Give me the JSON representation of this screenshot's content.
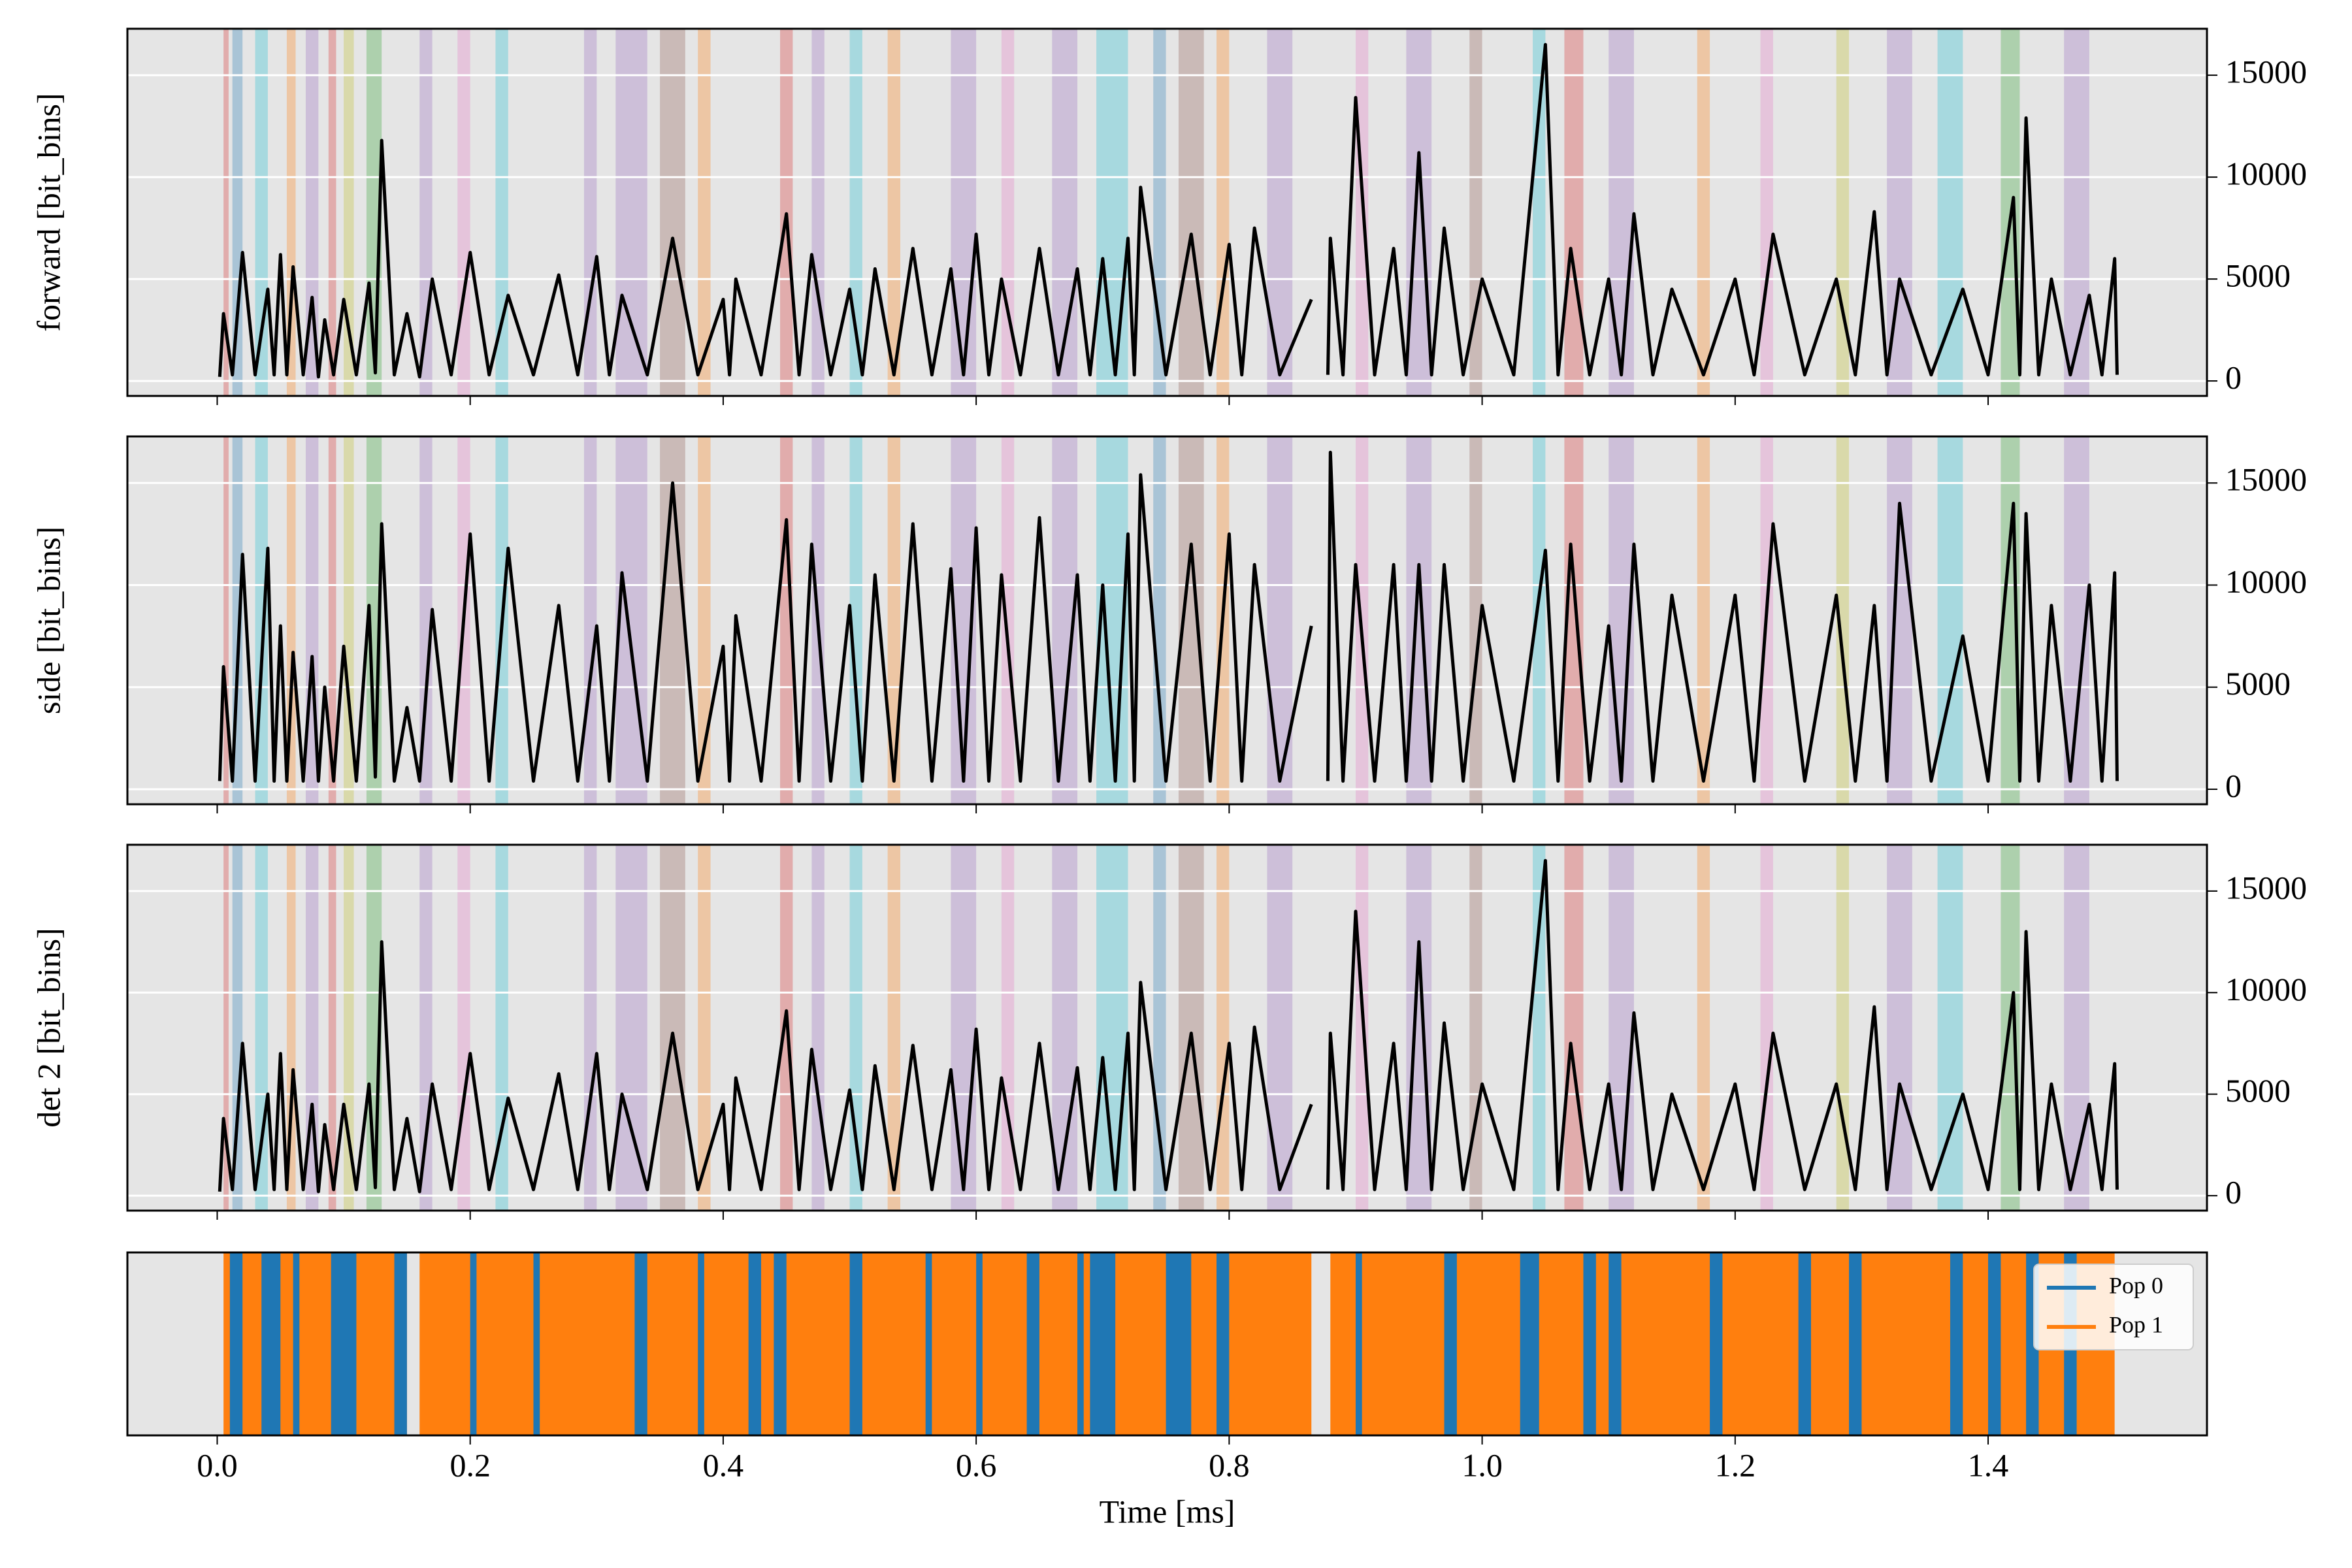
{
  "chart_data": [
    {
      "type": "line",
      "ylabel": "forward [bit_bins]",
      "color": "#000000",
      "grid": true,
      "xlim": [
        -0.071,
        1.573
      ],
      "ylim": [
        -735,
        17280
      ],
      "yticks": [
        0,
        5000,
        10000,
        15000
      ],
      "bands": {
        "x": [
          0.005,
          0.012,
          0.03,
          0.055,
          0.07,
          0.088,
          0.1,
          0.118,
          0.16,
          0.19,
          0.22,
          0.29,
          0.315,
          0.35,
          0.38,
          0.445,
          0.47,
          0.5,
          0.53,
          0.58,
          0.62,
          0.66,
          0.695,
          0.74,
          0.76,
          0.79,
          0.83,
          0.9,
          0.94,
          0.99,
          1.04,
          1.065,
          1.1,
          1.17,
          1.22,
          1.28,
          1.32,
          1.36,
          1.41,
          1.46
        ],
        "x_end": [
          0.009,
          0.02,
          0.04,
          0.062,
          0.08,
          0.094,
          0.108,
          0.13,
          0.17,
          0.2,
          0.23,
          0.3,
          0.34,
          0.37,
          0.39,
          0.455,
          0.48,
          0.51,
          0.54,
          0.6,
          0.63,
          0.68,
          0.72,
          0.75,
          0.78,
          0.8,
          0.85,
          0.91,
          0.96,
          1.0,
          1.05,
          1.08,
          1.12,
          1.18,
          1.23,
          1.29,
          1.34,
          1.38,
          1.425,
          1.48
        ],
        "color": [
          "#d62728",
          "#1f77b4",
          "#17becf",
          "#ff7f0e",
          "#9467bd",
          "#d62728",
          "#bcbd22",
          "#2ca02c",
          "#9467bd",
          "#e377c2",
          "#17becf",
          "#9467bd",
          "#9467bd",
          "#8c564b",
          "#ff7f0e",
          "#d62728",
          "#9467bd",
          "#17becf",
          "#ff7f0e",
          "#9467bd",
          "#e377c2",
          "#9467bd",
          "#17becf",
          "#1f77b4",
          "#8c564b",
          "#ff7f0e",
          "#9467bd",
          "#e377c2",
          "#9467bd",
          "#8c564b",
          "#17becf",
          "#d62728",
          "#9467bd",
          "#ff7f0e",
          "#e377c2",
          "#bcbd22",
          "#9467bd",
          "#17becf",
          "#2ca02c",
          "#9467bd"
        ]
      },
      "x": [
        0.002,
        0.005,
        0.012,
        0.02,
        0.03,
        0.04,
        0.045,
        0.05,
        0.055,
        0.06,
        0.068,
        0.075,
        0.08,
        0.085,
        0.092,
        0.1,
        0.11,
        0.12,
        0.125,
        0.13,
        0.14,
        0.15,
        0.16,
        0.17,
        0.185,
        0.2,
        0.215,
        0.23,
        0.25,
        0.27,
        0.285,
        0.3,
        0.31,
        0.32,
        0.34,
        0.36,
        0.38,
        0.4,
        0.405,
        0.41,
        0.43,
        0.45,
        0.46,
        0.47,
        0.485,
        0.5,
        0.51,
        0.52,
        0.535,
        0.55,
        0.565,
        0.58,
        0.59,
        0.6,
        0.61,
        0.62,
        0.635,
        0.65,
        0.665,
        0.68,
        0.69,
        0.7,
        0.71,
        0.72,
        0.725,
        0.73,
        0.75,
        0.77,
        0.785,
        0.8,
        0.81,
        0.82,
        0.84,
        0.865,
        0.87,
        0.878,
        0.88,
        0.89,
        0.9,
        0.915,
        0.93,
        0.94,
        0.95,
        0.96,
        0.97,
        0.985,
        1.0,
        1.025,
        1.05,
        1.06,
        1.07,
        1.085,
        1.1,
        1.11,
        1.12,
        1.135,
        1.15,
        1.175,
        1.2,
        1.215,
        1.23,
        1.255,
        1.28,
        1.295,
        1.31,
        1.32,
        1.33,
        1.355,
        1.38,
        1.4,
        1.42,
        1.425,
        1.43,
        1.44,
        1.45,
        1.465,
        1.48,
        1.49,
        1.5,
        1.502
      ],
      "values": [
        200,
        3300,
        300,
        6300,
        300,
        4500,
        300,
        6200,
        300,
        5600,
        300,
        4100,
        200,
        3000,
        300,
        4000,
        300,
        4800,
        400,
        11800,
        300,
        3300,
        200,
        5000,
        300,
        6300,
        300,
        4200,
        300,
        5200,
        300,
        6100,
        300,
        4200,
        300,
        7000,
        300,
        4000,
        300,
        5000,
        300,
        8200,
        300,
        6200,
        300,
        4500,
        300,
        5500,
        300,
        6500,
        300,
        5500,
        300,
        7200,
        300,
        5000,
        300,
        6500,
        300,
        5500,
        300,
        6000,
        300,
        7000,
        300,
        9500,
        300,
        7200,
        300,
        6700,
        300,
        7500,
        300,
        4000,
        null,
        300,
        7000,
        300,
        13900,
        300,
        6500,
        300,
        11200,
        300,
        7500,
        300,
        5000,
        300,
        16500,
        300,
        6500,
        300,
        5000,
        300,
        8200,
        300,
        4500,
        300,
        5000,
        300,
        7200,
        300,
        5000,
        300,
        8300,
        300,
        5000,
        300,
        4500,
        300,
        9000,
        300,
        12900,
        300,
        5000,
        300,
        4200,
        300,
        6000,
        300
      ]
    },
    {
      "type": "line",
      "ylabel": "side [bit_bins]",
      "color": "#000000",
      "grid": true,
      "xlim": [
        -0.071,
        1.573
      ],
      "ylim": [
        -735,
        17280
      ],
      "yticks": [
        0,
        5000,
        10000,
        15000
      ],
      "x": [
        0.002,
        0.005,
        0.012,
        0.02,
        0.03,
        0.04,
        0.045,
        0.05,
        0.055,
        0.06,
        0.068,
        0.075,
        0.08,
        0.085,
        0.092,
        0.1,
        0.11,
        0.12,
        0.125,
        0.13,
        0.14,
        0.15,
        0.16,
        0.17,
        0.185,
        0.2,
        0.215,
        0.23,
        0.25,
        0.27,
        0.285,
        0.3,
        0.31,
        0.32,
        0.34,
        0.36,
        0.38,
        0.4,
        0.405,
        0.41,
        0.43,
        0.45,
        0.46,
        0.47,
        0.485,
        0.5,
        0.51,
        0.52,
        0.535,
        0.55,
        0.565,
        0.58,
        0.59,
        0.6,
        0.61,
        0.62,
        0.635,
        0.65,
        0.665,
        0.68,
        0.69,
        0.7,
        0.71,
        0.72,
        0.725,
        0.73,
        0.75,
        0.77,
        0.785,
        0.8,
        0.81,
        0.82,
        0.84,
        0.865,
        0.87,
        0.878,
        0.88,
        0.89,
        0.9,
        0.915,
        0.93,
        0.94,
        0.95,
        0.96,
        0.97,
        0.985,
        1.0,
        1.025,
        1.05,
        1.06,
        1.07,
        1.085,
        1.1,
        1.11,
        1.12,
        1.135,
        1.15,
        1.175,
        1.2,
        1.215,
        1.23,
        1.255,
        1.28,
        1.295,
        1.31,
        1.32,
        1.33,
        1.355,
        1.38,
        1.4,
        1.42,
        1.425,
        1.43,
        1.44,
        1.45,
        1.465,
        1.48,
        1.49,
        1.5,
        1.502
      ],
      "values": [
        400,
        6000,
        400,
        11500,
        400,
        11800,
        400,
        8000,
        400,
        6700,
        400,
        6500,
        400,
        5000,
        400,
        7000,
        400,
        9000,
        600,
        13000,
        400,
        4000,
        400,
        8800,
        400,
        12500,
        400,
        11800,
        400,
        9000,
        400,
        8000,
        400,
        10600,
        400,
        15000,
        400,
        7000,
        400,
        8500,
        400,
        13200,
        400,
        12000,
        400,
        9000,
        400,
        10500,
        400,
        13000,
        400,
        10800,
        400,
        12800,
        400,
        10500,
        400,
        13300,
        400,
        10500,
        400,
        10000,
        400,
        12500,
        400,
        15400,
        400,
        12000,
        400,
        12500,
        400,
        11000,
        400,
        8000,
        null,
        400,
        16500,
        400,
        11000,
        400,
        11000,
        400,
        11000,
        400,
        11000,
        400,
        9000,
        400,
        11700,
        400,
        12000,
        400,
        8000,
        400,
        12000,
        400,
        9500,
        400,
        9500,
        400,
        13000,
        400,
        9500,
        400,
        9000,
        400,
        14000,
        400,
        7500,
        400,
        14000,
        400,
        13500,
        400,
        9000,
        400,
        10000,
        400,
        10600,
        400
      ]
    },
    {
      "type": "line",
      "ylabel": "det 2 [bit_bins]",
      "color": "#000000",
      "grid": true,
      "xlim": [
        -0.071,
        1.573
      ],
      "ylim": [
        -735,
        17280
      ],
      "yticks": [
        0,
        5000,
        10000,
        15000
      ],
      "x": [
        0.002,
        0.005,
        0.012,
        0.02,
        0.03,
        0.04,
        0.045,
        0.05,
        0.055,
        0.06,
        0.068,
        0.075,
        0.08,
        0.085,
        0.092,
        0.1,
        0.11,
        0.12,
        0.125,
        0.13,
        0.14,
        0.15,
        0.16,
        0.17,
        0.185,
        0.2,
        0.215,
        0.23,
        0.25,
        0.27,
        0.285,
        0.3,
        0.31,
        0.32,
        0.34,
        0.36,
        0.38,
        0.4,
        0.405,
        0.41,
        0.43,
        0.45,
        0.46,
        0.47,
        0.485,
        0.5,
        0.51,
        0.52,
        0.535,
        0.55,
        0.565,
        0.58,
        0.59,
        0.6,
        0.61,
        0.62,
        0.635,
        0.65,
        0.665,
        0.68,
        0.69,
        0.7,
        0.71,
        0.72,
        0.725,
        0.73,
        0.75,
        0.77,
        0.785,
        0.8,
        0.81,
        0.82,
        0.84,
        0.865,
        0.87,
        0.878,
        0.88,
        0.89,
        0.9,
        0.915,
        0.93,
        0.94,
        0.95,
        0.96,
        0.97,
        0.985,
        1.0,
        1.025,
        1.05,
        1.06,
        1.07,
        1.085,
        1.1,
        1.11,
        1.12,
        1.135,
        1.15,
        1.175,
        1.2,
        1.215,
        1.23,
        1.255,
        1.28,
        1.295,
        1.31,
        1.32,
        1.33,
        1.355,
        1.38,
        1.4,
        1.42,
        1.425,
        1.43,
        1.44,
        1.45,
        1.465,
        1.48,
        1.49,
        1.5,
        1.502
      ],
      "values": [
        200,
        3800,
        300,
        7500,
        300,
        5000,
        300,
        7000,
        300,
        6200,
        300,
        4500,
        200,
        3500,
        300,
        4500,
        300,
        5500,
        400,
        12500,
        300,
        3800,
        200,
        5500,
        300,
        7000,
        300,
        4800,
        300,
        6000,
        300,
        7000,
        300,
        5000,
        300,
        8000,
        300,
        4500,
        300,
        5800,
        300,
        9100,
        300,
        7200,
        300,
        5200,
        300,
        6400,
        300,
        7400,
        300,
        6200,
        300,
        8200,
        300,
        5800,
        300,
        7500,
        300,
        6300,
        300,
        6800,
        300,
        8000,
        300,
        10500,
        300,
        8000,
        300,
        7500,
        300,
        8300,
        300,
        4500,
        null,
        300,
        8000,
        300,
        14000,
        300,
        7500,
        300,
        12500,
        300,
        8500,
        300,
        5500,
        300,
        16500,
        300,
        7500,
        300,
        5500,
        300,
        9000,
        300,
        5000,
        300,
        5500,
        300,
        8000,
        300,
        5500,
        300,
        9300,
        300,
        5500,
        300,
        5000,
        300,
        10000,
        300,
        13000,
        300,
        5500,
        300,
        4500,
        300,
        6500,
        300
      ]
    },
    {
      "type": "event",
      "xlabel": "Time [ms]",
      "legend": "upper right",
      "xlim": [
        -0.071,
        1.573
      ],
      "xticks": [
        {
          "value": 0,
          "label": "0.0"
        },
        0.2,
        0.4,
        0.6,
        0.8,
        {
          "value": 1,
          "label": "1.0"
        },
        1.2,
        1.4
      ],
      "series": [
        {
          "name": "Pop 0",
          "color": "#1f77b4",
          "x": [
            0.01,
            0.035,
            0.06,
            0.09,
            0.14,
            0.2,
            0.25,
            0.33,
            0.38,
            0.42,
            0.44,
            0.5,
            0.56,
            0.6,
            0.64,
            0.68,
            0.69,
            0.75,
            0.79,
            0.9,
            0.97,
            1.03,
            1.08,
            1.1,
            1.18,
            1.25,
            1.29,
            1.37,
            1.4,
            1.43,
            1.46
          ],
          "x_end": [
            0.02,
            0.05,
            0.065,
            0.11,
            0.15,
            0.205,
            0.255,
            0.34,
            0.385,
            0.43,
            0.45,
            0.51,
            0.565,
            0.605,
            0.65,
            0.685,
            0.71,
            0.77,
            0.8,
            0.905,
            0.98,
            1.045,
            1.09,
            1.11,
            1.19,
            1.26,
            1.3,
            1.38,
            1.41,
            1.44,
            1.47
          ]
        },
        {
          "name": "Pop 1",
          "color": "#ff7f0e",
          "x": [
            0.005,
            0.16,
            0.88
          ],
          "x_end": [
            0.15,
            0.865,
            1.5
          ]
        }
      ]
    }
  ]
}
